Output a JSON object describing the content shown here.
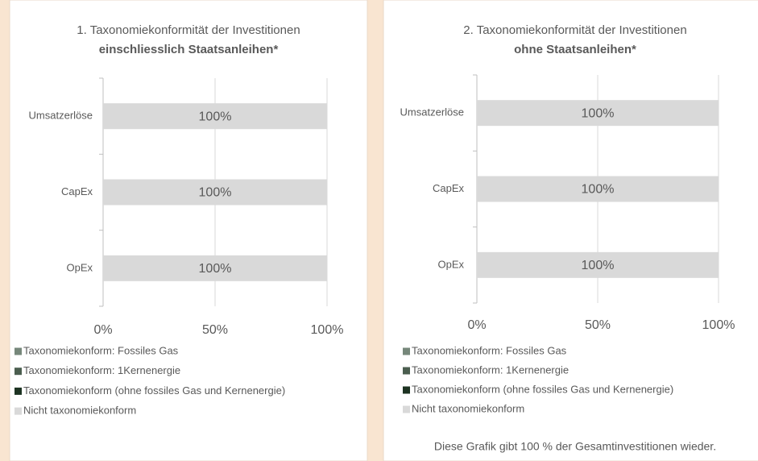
{
  "chart_data": [
    {
      "type": "bar",
      "orientation": "horizontal",
      "stacked": true,
      "title": "1. Taxonomiekonformität der Investitionen",
      "subtitle": "einschliesslich Staatsanleihen*",
      "categories": [
        "Umsatzerlöse",
        "CapEx",
        "OpEx"
      ],
      "series": [
        {
          "name": "Taxonomiekonform: Fossiles Gas",
          "color": "#76877a",
          "values": [
            0,
            0,
            0
          ]
        },
        {
          "name": "Taxonomiekonform: 1Kernenergie",
          "color": "#4b5e4f",
          "values": [
            0,
            0,
            0
          ]
        },
        {
          "name": "Taxonomiekonform (ohne fossiles Gas und Kernenergie)",
          "color": "#1d3322",
          "values": [
            0,
            0,
            0
          ]
        },
        {
          "name": "Nicht taxonomiekonform",
          "color": "#d9d9d9",
          "values": [
            100,
            100,
            100
          ],
          "value_labels": [
            "100%",
            "100%",
            "100%"
          ]
        }
      ],
      "xlim": [
        0,
        100
      ],
      "xticks": [
        {
          "value": 0,
          "label": "0%"
        },
        {
          "value": 50,
          "label": "50%"
        },
        {
          "value": 100,
          "label": "100%"
        }
      ],
      "grid": true,
      "legend": "bottom"
    },
    {
      "type": "bar",
      "orientation": "horizontal",
      "stacked": true,
      "title": "2. Taxonomiekonformität der Investitionen",
      "subtitle": "ohne Staatsanleihen*",
      "categories": [
        "Umsatzerlöse",
        "CapEx",
        "OpEx"
      ],
      "series": [
        {
          "name": "Taxonomiekonform: Fossiles Gas",
          "color": "#76877a",
          "values": [
            0,
            0,
            0
          ]
        },
        {
          "name": "Taxonomiekonform: 1Kernenergie",
          "color": "#4b5e4f",
          "values": [
            0,
            0,
            0
          ]
        },
        {
          "name": "Taxonomiekonform (ohne fossiles Gas und Kernenergie)",
          "color": "#1d3322",
          "values": [
            0,
            0,
            0
          ]
        },
        {
          "name": "Nicht taxonomiekonform",
          "color": "#d9d9d9",
          "values": [
            100,
            100,
            100
          ],
          "value_labels": [
            "100%",
            "100%",
            "100%"
          ]
        }
      ],
      "xlim": [
        0,
        100
      ],
      "xticks": [
        {
          "value": 0,
          "label": "0%"
        },
        {
          "value": 50,
          "label": "50%"
        },
        {
          "value": 100,
          "label": "100%"
        }
      ],
      "grid": true,
      "legend": "bottom",
      "footnote": "Diese Grafik gibt 100 % der Gesamtinvestitionen wieder."
    }
  ]
}
